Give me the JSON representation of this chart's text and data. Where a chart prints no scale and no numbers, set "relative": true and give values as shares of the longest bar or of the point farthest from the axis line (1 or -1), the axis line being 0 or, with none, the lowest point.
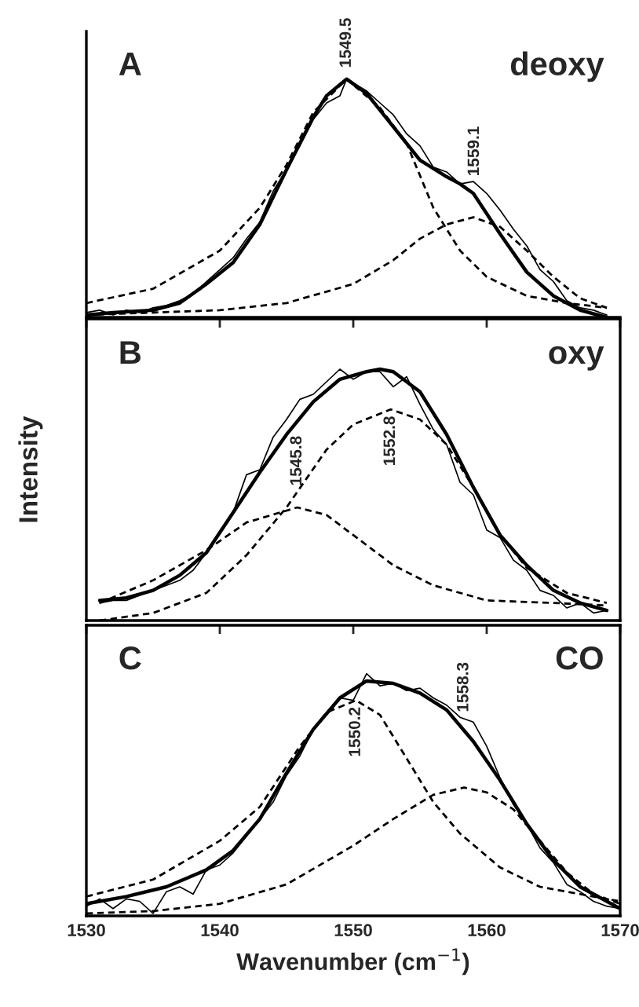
{
  "chart_data": [
    {
      "type": "line",
      "relative": true,
      "title": "A",
      "subtitle": "deoxy",
      "xlim": [
        1530,
        1570
      ],
      "xticks": [
        1530,
        1540,
        1550,
        1560,
        1570
      ],
      "tick_labels": false,
      "grid": false,
      "legend": false,
      "series": [
        {
          "color": "#000000",
          "line_style": "solid",
          "x": [
            1530,
            1531,
            1532,
            1533,
            1534,
            1535,
            1536,
            1537,
            1538,
            1539,
            1540,
            1541,
            1542,
            1543,
            1544,
            1545,
            1546,
            1547,
            1548,
            1549,
            1549.5,
            1551,
            1552,
            1553,
            1554,
            1555,
            1556,
            1557,
            1558,
            1559,
            1560,
            1561,
            1562,
            1563,
            1564,
            1565,
            1566,
            1567,
            1568,
            1569
          ],
          "values": [
            0.02,
            0.03,
            0.01,
            0.03,
            0.02,
            0.04,
            0.05,
            0.07,
            0.1,
            0.15,
            0.2,
            0.25,
            0.33,
            0.4,
            0.53,
            0.62,
            0.72,
            0.83,
            0.9,
            0.93,
            1.0,
            0.95,
            0.9,
            0.85,
            0.77,
            0.72,
            0.63,
            0.61,
            0.56,
            0.57,
            0.52,
            0.45,
            0.37,
            0.3,
            0.2,
            0.15,
            0.07,
            0.04,
            0.03,
            0.01
          ]
        },
        {
          "color": "#000000",
          "line_style": "solid",
          "x": [
            1530,
            1532,
            1535,
            1537,
            1539,
            1541,
            1543,
            1545,
            1547,
            1548,
            1549.5,
            1551,
            1553,
            1555,
            1557,
            1558,
            1559,
            1561,
            1563,
            1565,
            1567,
            1569
          ],
          "values": [
            0.01,
            0.02,
            0.03,
            0.06,
            0.14,
            0.23,
            0.39,
            0.62,
            0.84,
            0.93,
            1.0,
            0.94,
            0.8,
            0.66,
            0.59,
            0.56,
            0.52,
            0.35,
            0.19,
            0.09,
            0.03,
            0.0
          ]
        },
        {
          "color": "#000000",
          "line_style": "dashed",
          "x": [
            1530,
            1535,
            1540,
            1543,
            1545,
            1547,
            1549.5,
            1552,
            1554,
            1556,
            1558,
            1560,
            1563,
            1566,
            1569
          ],
          "values": [
            0.06,
            0.12,
            0.28,
            0.46,
            0.64,
            0.86,
            1.0,
            0.88,
            0.73,
            0.46,
            0.28,
            0.17,
            0.09,
            0.06,
            0.04
          ]
        },
        {
          "color": "#000000",
          "line_style": "dashed",
          "x": [
            1530,
            1540,
            1545,
            1550,
            1553,
            1555,
            1557,
            1559,
            1561,
            1563,
            1565,
            1567,
            1569
          ],
          "values": [
            0.01,
            0.03,
            0.06,
            0.14,
            0.24,
            0.33,
            0.39,
            0.42,
            0.38,
            0.28,
            0.17,
            0.08,
            0.04
          ]
        }
      ],
      "annotations": [
        {
          "text": "1549.5",
          "x": 1549.5,
          "y": 1.02
        },
        {
          "text": "1559.1",
          "x": 1559.1,
          "y": 0.565
        }
      ]
    },
    {
      "type": "line",
      "relative": true,
      "title": "B",
      "subtitle": "oxy",
      "ylabel": "Intensity",
      "xlim": [
        1530,
        1570
      ],
      "xticks": [
        1530,
        1540,
        1550,
        1560,
        1570
      ],
      "tick_labels": false,
      "grid": false,
      "legend": false,
      "series": [
        {
          "color": "#000000",
          "line_style": "solid",
          "x": [
            1531,
            1532,
            1533,
            1534,
            1535,
            1536,
            1537,
            1538,
            1539,
            1540,
            1541,
            1542,
            1543,
            1544,
            1545,
            1546,
            1547,
            1548,
            1549,
            1550,
            1551,
            1552,
            1553,
            1554,
            1555,
            1556,
            1557,
            1558,
            1559,
            1560,
            1561,
            1562,
            1563,
            1564,
            1565,
            1566,
            1567,
            1568,
            1569
          ],
          "values": [
            0.07,
            0.08,
            0.08,
            0.1,
            0.12,
            0.14,
            0.16,
            0.2,
            0.27,
            0.35,
            0.43,
            0.58,
            0.6,
            0.73,
            0.8,
            0.88,
            0.9,
            0.95,
            1.0,
            0.96,
            0.99,
            0.99,
            0.93,
            0.97,
            0.86,
            0.76,
            0.7,
            0.55,
            0.5,
            0.36,
            0.33,
            0.24,
            0.2,
            0.12,
            0.1,
            0.05,
            0.07,
            0.03,
            0.04
          ]
        },
        {
          "color": "#000000",
          "line_style": "solid",
          "x": [
            1531,
            1533,
            1535,
            1537,
            1539,
            1541,
            1543,
            1545,
            1547,
            1549,
            1551,
            1552,
            1553,
            1555,
            1557,
            1559,
            1561,
            1563,
            1565,
            1567,
            1569
          ],
          "values": [
            0.08,
            0.09,
            0.12,
            0.18,
            0.27,
            0.43,
            0.59,
            0.74,
            0.87,
            0.96,
            0.99,
            1.0,
            0.99,
            0.91,
            0.74,
            0.53,
            0.34,
            0.22,
            0.12,
            0.07,
            0.04
          ]
        },
        {
          "color": "#000000",
          "line_style": "dashed",
          "x": [
            1531,
            1535,
            1539,
            1542,
            1545.8,
            1548,
            1550,
            1553,
            1556,
            1560,
            1565,
            1569
          ],
          "values": [
            0.07,
            0.16,
            0.28,
            0.39,
            0.45,
            0.42,
            0.34,
            0.22,
            0.14,
            0.08,
            0.07,
            0.06
          ]
        },
        {
          "color": "#000000",
          "line_style": "dashed",
          "x": [
            1531,
            1535,
            1539,
            1542,
            1545,
            1548,
            1550,
            1552.8,
            1555,
            1557,
            1559,
            1561,
            1563,
            1566,
            1569
          ],
          "values": [
            0.0,
            0.03,
            0.11,
            0.26,
            0.45,
            0.68,
            0.78,
            0.84,
            0.8,
            0.7,
            0.53,
            0.34,
            0.21,
            0.11,
            0.07
          ]
        }
      ],
      "annotations": [
        {
          "text": "1545.8",
          "x": 1545.8,
          "y": 0.51
        },
        {
          "text": "1552.8",
          "x": 1552.8,
          "y": 0.84
        }
      ]
    },
    {
      "type": "line",
      "relative": true,
      "title": "C",
      "subtitle": "CO",
      "xlabel": "Wavenumber (cm$^{−1}$)",
      "xlim": [
        1530,
        1570
      ],
      "xticks": [
        1530,
        1540,
        1550,
        1560,
        1570
      ],
      "tick_labels": "x",
      "grid": false,
      "legend": false,
      "series": [
        {
          "color": "#000000",
          "line_style": "solid",
          "x": [
            1530,
            1531,
            1532,
            1533,
            1534,
            1535,
            1536,
            1537,
            1538,
            1539,
            1540,
            1541,
            1542,
            1543,
            1544,
            1545,
            1546,
            1547,
            1548,
            1549,
            1550,
            1551,
            1552,
            1553,
            1554,
            1555,
            1556,
            1557,
            1558,
            1559,
            1560,
            1561,
            1562,
            1563,
            1564,
            1565,
            1566,
            1567,
            1568,
            1569,
            1570
          ],
          "values": [
            0.04,
            0.07,
            0.03,
            0.07,
            0.06,
            0.01,
            0.1,
            0.12,
            0.09,
            0.19,
            0.21,
            0.26,
            0.33,
            0.4,
            0.47,
            0.58,
            0.66,
            0.77,
            0.84,
            0.9,
            0.89,
            1.0,
            0.95,
            0.96,
            0.93,
            0.94,
            0.9,
            0.87,
            0.82,
            0.8,
            0.7,
            0.57,
            0.46,
            0.38,
            0.28,
            0.22,
            0.13,
            0.1,
            0.06,
            0.04,
            0.03
          ]
        },
        {
          "color": "#000000",
          "line_style": "solid",
          "x": [
            1530,
            1533,
            1536,
            1539,
            1541,
            1543,
            1545,
            1547,
            1549,
            1551,
            1553,
            1555,
            1557,
            1559,
            1561,
            1563,
            1565,
            1567,
            1570
          ],
          "values": [
            0.05,
            0.08,
            0.12,
            0.19,
            0.27,
            0.4,
            0.59,
            0.77,
            0.9,
            0.97,
            0.96,
            0.92,
            0.85,
            0.72,
            0.56,
            0.38,
            0.23,
            0.12,
            0.03
          ]
        },
        {
          "color": "#000000",
          "line_style": "dashed",
          "x": [
            1530,
            1535,
            1540,
            1543,
            1546,
            1548,
            1550.2,
            1552,
            1554,
            1556,
            1558,
            1561,
            1564,
            1567,
            1570
          ],
          "values": [
            0.08,
            0.15,
            0.31,
            0.45,
            0.7,
            0.84,
            0.89,
            0.83,
            0.65,
            0.47,
            0.34,
            0.2,
            0.12,
            0.09,
            0.06
          ]
        },
        {
          "color": "#000000",
          "line_style": "dashed",
          "x": [
            1530,
            1535,
            1540,
            1545,
            1550,
            1553,
            1556,
            1558.3,
            1560,
            1562,
            1564,
            1566,
            1568,
            1570
          ],
          "values": [
            0.01,
            0.02,
            0.05,
            0.13,
            0.29,
            0.4,
            0.5,
            0.53,
            0.51,
            0.44,
            0.31,
            0.18,
            0.09,
            0.05
          ]
        }
      ],
      "annotations": [
        {
          "text": "1550.2",
          "x": 1550.2,
          "y": 0.89
        },
        {
          "text": "1558.3",
          "x": 1558.3,
          "y": 0.814
        }
      ]
    }
  ]
}
